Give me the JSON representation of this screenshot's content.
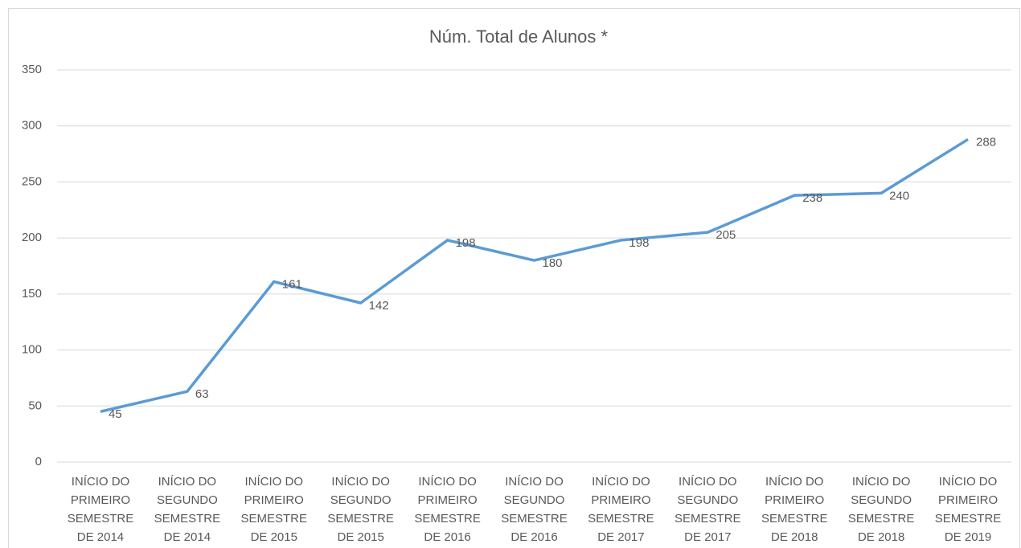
{
  "chart_data": {
    "type": "line",
    "title": "Núm. Total de Alunos *",
    "categories": [
      "INÍCIO DO\nPRIMEIRO\nSEMESTRE\nDE 2014",
      "INÍCIO DO\nSEGUNDO\nSEMESTRE\nDE 2014",
      "INÍCIO DO\nPRIMEIRO\nSEMESTRE\nDE 2015",
      "INÍCIO DO\nSEGUNDO\nSEMESTRE\nDE 2015",
      "INÍCIO DO\nPRIMEIRO\nSEMESTRE\nDE 2016",
      "INÍCIO DO\nSEGUNDO\nSEMESTRE\nDE 2016",
      "INÍCIO DO\nPRIMEIRO\nSEMESTRE\nDE 2017",
      "INÍCIO DO\nSEGUNDO\nSEMESTRE\nDE 2017",
      "INÍCIO DO\nPRIMEIRO\nSEMESTRE\nDE 2018",
      "INÍCIO DO\nSEGUNDO\nSEMESTRE\nDE 2018",
      "INÍCIO DO\nPRIMEIRO\nSEMESTRE\nDE 2019"
    ],
    "values": [
      45,
      63,
      161,
      142,
      198,
      180,
      198,
      205,
      238,
      240,
      288
    ],
    "color": "#5b9bd5",
    "ylim": [
      0,
      350
    ],
    "yticks": [
      0,
      50,
      100,
      150,
      200,
      250,
      300,
      350
    ],
    "grid": true
  }
}
